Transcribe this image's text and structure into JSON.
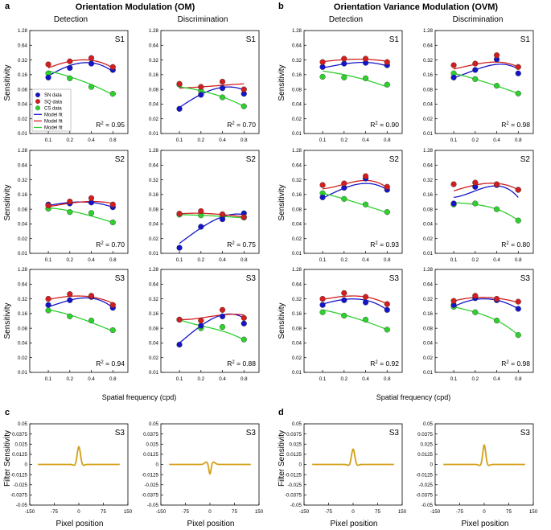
{
  "figure": {
    "panel_letters": [
      "a",
      "b",
      "c",
      "d"
    ],
    "group_titles": [
      "Orientation Modulation (OM)",
      "Orientation Variance Modulation (OVM)"
    ],
    "column_titles": [
      "Detection",
      "Discrimination",
      "Detection",
      "Discrimination"
    ],
    "sensitivity_ylabel": "Sensitivity",
    "sensitivity_xlabel": "Spatial frequency (cpd)",
    "filter_ylabel": "Filter Sensitivity",
    "filter_xlabel": "Pixel position",
    "legend": [
      "SN data",
      "SQ data",
      "CS data",
      "Model fit",
      "Model fit",
      "Model fit"
    ]
  },
  "chart_data": [
    {
      "id": "OM-Det-S1",
      "type": "scatter",
      "subject": "S1",
      "r2": "= 0.95",
      "x": [
        0.1,
        0.2,
        0.4,
        0.8
      ],
      "series": [
        {
          "name": "SN data",
          "values": [
            0.14,
            0.22,
            0.27,
            0.2
          ]
        },
        {
          "name": "SQ data",
          "values": [
            0.26,
            0.3,
            0.35,
            0.23
          ]
        },
        {
          "name": "CS data",
          "values": [
            0.17,
            0.135,
            0.09,
            0.065
          ]
        }
      ],
      "fits": [
        [
          0.15,
          0.245,
          0.28,
          0.185
        ],
        [
          0.22,
          0.3,
          0.315,
          0.22
        ],
        [
          0.19,
          0.145,
          0.1,
          0.062
        ]
      ]
    },
    {
      "id": "OM-Dis-S1",
      "type": "scatter",
      "subject": "S1",
      "r2": "= 0.70",
      "x": [
        0.1,
        0.2,
        0.4,
        0.8
      ],
      "series": [
        {
          "name": "SN data",
          "values": [
            0.032,
            0.062,
            0.085,
            0.065
          ]
        },
        {
          "name": "SQ data",
          "values": [
            0.104,
            0.09,
            0.115,
            0.08
          ]
        },
        {
          "name": "CS data",
          "values": [
            0.1,
            0.075,
            0.055,
            0.036
          ]
        }
      ],
      "fits": [
        [
          0.034,
          0.063,
          0.088,
          0.078
        ],
        [
          0.085,
          0.09,
          0.097,
          0.104
        ],
        [
          0.09,
          0.075,
          0.056,
          0.036
        ]
      ]
    },
    {
      "id": "OVM-Det-S1",
      "type": "scatter",
      "subject": "S1",
      "r2": "= 0.90",
      "x": [
        0.1,
        0.2,
        0.4,
        0.8
      ],
      "series": [
        {
          "name": "SN data",
          "values": [
            0.23,
            0.27,
            0.28,
            0.25
          ]
        },
        {
          "name": "SQ data",
          "values": [
            0.29,
            0.34,
            0.34,
            0.29
          ]
        },
        {
          "name": "CS data",
          "values": [
            0.145,
            0.14,
            0.135,
            0.1
          ]
        }
      ],
      "fits": [
        [
          0.22,
          0.265,
          0.285,
          0.24
        ],
        [
          0.295,
          0.325,
          0.33,
          0.3
        ],
        [
          0.19,
          0.16,
          0.125,
          0.09
        ]
      ]
    },
    {
      "id": "OVM-Dis-S1",
      "type": "scatter",
      "subject": "S1",
      "r2": "= 0.98",
      "x": [
        0.1,
        0.2,
        0.4,
        0.8
      ],
      "series": [
        {
          "name": "SN data",
          "values": [
            0.14,
            0.2,
            0.33,
            0.17
          ]
        },
        {
          "name": "SQ data",
          "values": [
            0.25,
            0.27,
            0.4,
            0.23
          ]
        },
        {
          "name": "CS data",
          "values": [
            0.17,
            0.13,
            0.095,
            0.066
          ]
        }
      ],
      "fits": [
        [
          0.14,
          0.2,
          0.26,
          0.21
        ],
        [
          0.21,
          0.26,
          0.29,
          0.23
        ],
        [
          0.17,
          0.13,
          0.094,
          0.066
        ]
      ]
    },
    {
      "id": "OM-Det-S2",
      "type": "scatter",
      "subject": "S2",
      "r2": "= 0.70",
      "x": [
        0.1,
        0.2,
        0.4,
        0.8
      ],
      "series": [
        {
          "name": "SN data",
          "values": [
            0.1,
            0.105,
            0.11,
            0.088
          ]
        },
        {
          "name": "SQ data",
          "values": [
            0.095,
            0.115,
            0.135,
            0.1
          ]
        },
        {
          "name": "CS data",
          "values": [
            0.082,
            0.07,
            0.067,
            0.043
          ]
        }
      ],
      "fits": [
        [
          0.095,
          0.11,
          0.11,
          0.088
        ],
        [
          0.09,
          0.106,
          0.115,
          0.105
        ],
        [
          0.085,
          0.074,
          0.058,
          0.043
        ]
      ]
    },
    {
      "id": "OM-Dis-S2",
      "type": "scatter",
      "subject": "S2",
      "r2": "= 0.75",
      "x": [
        0.1,
        0.2,
        0.4,
        0.8
      ],
      "series": [
        {
          "name": "SN data",
          "values": [
            0.013,
            0.035,
            0.05,
            0.066
          ]
        },
        {
          "name": "SQ data",
          "values": [
            0.065,
            0.073,
            0.063,
            0.055
          ]
        },
        {
          "name": "CS data",
          "values": [
            0.062,
            0.06,
            0.056,
            0.054
          ]
        }
      ],
      "fits": [
        [
          0.016,
          0.033,
          0.056,
          0.062
        ],
        [
          0.064,
          0.066,
          0.062,
          0.056
        ],
        [
          0.062,
          0.06,
          0.057,
          0.053
        ]
      ]
    },
    {
      "id": "OVM-Det-S2",
      "type": "scatter",
      "subject": "S2",
      "r2": "= 0.93",
      "x": [
        0.1,
        0.2,
        0.4,
        0.8
      ],
      "series": [
        {
          "name": "SN data",
          "values": [
            0.14,
            0.22,
            0.34,
            0.2
          ]
        },
        {
          "name": "SQ data",
          "values": [
            0.25,
            0.27,
            0.38,
            0.23
          ]
        },
        {
          "name": "CS data",
          "values": [
            0.17,
            0.13,
            0.1,
            0.07
          ]
        }
      ],
      "fits": [
        [
          0.135,
          0.215,
          0.27,
          0.2
        ],
        [
          0.21,
          0.26,
          0.31,
          0.22
        ],
        [
          0.17,
          0.13,
          0.095,
          0.068
        ]
      ]
    },
    {
      "id": "OVM-Dis-S2",
      "type": "scatter",
      "subject": "S2",
      "r2": "= 0.80",
      "x": [
        0.1,
        0.2,
        0.4,
        0.8
      ],
      "series": [
        {
          "name": "SN data",
          "values": [
            0.105,
            0.23,
            0.25,
            0.2
          ]
        },
        {
          "name": "SQ data",
          "values": [
            0.26,
            0.28,
            0.26,
            0.2
          ]
        },
        {
          "name": "CS data",
          "values": [
            0.1,
            0.105,
            0.08,
            0.047
          ]
        }
      ],
      "fits": [
        [
          0.14,
          0.19,
          0.24,
          0.14
        ],
        [
          0.19,
          0.25,
          0.27,
          0.2
        ],
        [
          0.11,
          0.1,
          0.08,
          0.047
        ]
      ]
    },
    {
      "id": "OM-Det-S3",
      "type": "scatter",
      "subject": "S3",
      "r2": "= 0.94",
      "x": [
        0.1,
        0.2,
        0.4,
        0.8
      ],
      "series": [
        {
          "name": "SN data",
          "values": [
            0.24,
            0.3,
            0.35,
            0.21
          ]
        },
        {
          "name": "SQ data",
          "values": [
            0.32,
            0.4,
            0.37,
            0.24
          ]
        },
        {
          "name": "CS data",
          "values": [
            0.185,
            0.14,
            0.115,
            0.073
          ]
        }
      ],
      "fits": [
        [
          0.22,
          0.3,
          0.33,
          0.21
        ],
        [
          0.31,
          0.36,
          0.35,
          0.26
        ],
        [
          0.19,
          0.15,
          0.105,
          0.07
        ]
      ]
    },
    {
      "id": "OM-Dis-S3",
      "type": "scatter",
      "subject": "S3",
      "r2": "= 0.88",
      "x": [
        0.1,
        0.2,
        0.4,
        0.8
      ],
      "series": [
        {
          "name": "SN data",
          "values": [
            0.037,
            0.09,
            0.14,
            0.1
          ]
        },
        {
          "name": "SQ data",
          "values": [
            0.12,
            0.115,
            0.19,
            0.13
          ]
        },
        {
          "name": "CS data",
          "values": [
            0.12,
            0.08,
            0.085,
            0.047
          ]
        }
      ],
      "fits": [
        [
          0.04,
          0.09,
          0.15,
          0.13
        ],
        [
          0.12,
          0.13,
          0.15,
          0.15
        ],
        [
          0.12,
          0.09,
          0.07,
          0.046
        ]
      ]
    },
    {
      "id": "OVM-Det-S3",
      "type": "scatter",
      "subject": "S3",
      "r2": "= 0.92",
      "x": [
        0.1,
        0.2,
        0.4,
        0.8
      ],
      "series": [
        {
          "name": "SN data",
          "values": [
            0.24,
            0.3,
            0.27,
            0.19
          ]
        },
        {
          "name": "SQ data",
          "values": [
            0.32,
            0.42,
            0.35,
            0.25
          ]
        },
        {
          "name": "CS data",
          "values": [
            0.17,
            0.145,
            0.12,
            0.075
          ]
        }
      ],
      "fits": [
        [
          0.25,
          0.31,
          0.3,
          0.19
        ],
        [
          0.31,
          0.36,
          0.35,
          0.25
        ],
        [
          0.19,
          0.15,
          0.11,
          0.075
        ]
      ]
    },
    {
      "id": "OVM-Dis-S3",
      "type": "scatter",
      "subject": "S3",
      "r2": "= 0.98",
      "x": [
        0.1,
        0.2,
        0.4,
        0.8
      ],
      "series": [
        {
          "name": "SN data",
          "values": [
            0.24,
            0.33,
            0.3,
            0.2
          ]
        },
        {
          "name": "SQ data",
          "values": [
            0.29,
            0.37,
            0.32,
            0.28
          ]
        },
        {
          "name": "CS data",
          "values": [
            0.22,
            0.17,
            0.115,
            0.058
          ]
        }
      ],
      "fits": [
        [
          0.22,
          0.31,
          0.3,
          0.2
        ],
        [
          0.29,
          0.34,
          0.33,
          0.27
        ],
        [
          0.22,
          0.17,
          0.115,
          0.058
        ]
      ]
    }
  ],
  "sensitivity_axes": {
    "x_ticks": [
      0.1,
      0.2,
      0.4,
      0.8
    ],
    "y_ticks": [
      0.01,
      0.02,
      0.04,
      0.08,
      0.16,
      0.32,
      0.64,
      1.28
    ],
    "xlim": [
      0.055,
      1.3
    ],
    "ylim": [
      0.01,
      1.28
    ],
    "xscale": "log2",
    "yscale": "log2"
  },
  "filter_charts": [
    {
      "id": "OM-Det-filter",
      "subject": "S3",
      "amp": 0.022,
      "sigma": 5,
      "kind": "positive"
    },
    {
      "id": "OM-Dis-filter",
      "subject": "S3",
      "amp": -0.013,
      "sigma": 3.5,
      "kind": "negative-dip"
    },
    {
      "id": "OVM-Det-filter",
      "subject": "S3",
      "amp": 0.019,
      "sigma": 5,
      "kind": "positive"
    },
    {
      "id": "OVM-Dis-filter",
      "subject": "S3",
      "amp": 0.024,
      "sigma": 4.5,
      "kind": "positive"
    }
  ],
  "filter_axes": {
    "x_ticks": [
      -150,
      -75,
      0,
      75,
      150
    ],
    "x_labels": [
      "-150",
      "-75",
      "0",
      "75",
      "150"
    ],
    "y_ticks": [
      -0.05,
      -0.0375,
      -0.025,
      -0.0125,
      0,
      0.0125,
      0.025,
      0.0375,
      0.05
    ],
    "y_labels": [
      "-0.05",
      "-0.0375",
      "-0.025",
      "-0.0125",
      "0",
      "0.0125",
      "0.025",
      "0.0375",
      "0.05"
    ],
    "xlim": [
      -150,
      150
    ],
    "ylim": [
      -0.05,
      0.05
    ],
    "curve_range": [
      -125,
      125
    ]
  },
  "colors": {
    "sn": "#1414c8",
    "sq": "#d21e1e",
    "cs": "#2ed02e",
    "filter": "#d4a017",
    "axis": "#000000"
  }
}
